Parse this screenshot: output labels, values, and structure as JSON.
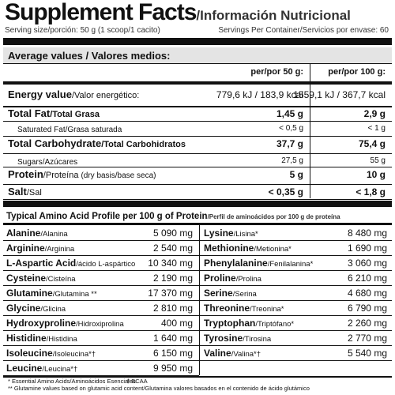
{
  "header": {
    "title": "Supplement Facts",
    "subtitle": "/Información Nutricional",
    "serving": "Serving size/porción: 50 g (1 scoop/1 cacito)",
    "servings": "Servings Per Container/Servicios por envase: 60"
  },
  "nutrition": {
    "heading": "Average values / Valores medios:",
    "columns": [
      "per/por 50 g:",
      "per/por 100 g:"
    ],
    "rows": [
      {
        "en": "Energy value",
        "es": "/Valor energético:",
        "values": [
          "779,6 kJ / 183,9 kcal",
          "1559,1 kJ / 367,7 kcal"
        ]
      },
      {
        "en": "Total Fat",
        "es": "/Total Grasa",
        "values": [
          "1,45 g",
          "2,9 g"
        ]
      },
      {
        "en": "Saturated Fat",
        "es": "/Grasa saturada",
        "values": [
          "< 0,5 g",
          "< 1 g"
        ]
      },
      {
        "en": "Total Carbohydrate",
        "es": "/Total Carbohidratos",
        "values": [
          "37,7 g",
          "75,4 g"
        ]
      },
      {
        "en": "Sugars",
        "es": "/Azúcares",
        "values": [
          "27,5 g",
          "55 g"
        ]
      },
      {
        "en": "Protein",
        "es": "/Proteína",
        "note": "(dry basis/base seca)",
        "values": [
          "5 g",
          "10 g"
        ]
      },
      {
        "en": "Salt",
        "es": "/Sal",
        "values": [
          "< 0,35 g",
          "< 1,8 g"
        ]
      }
    ]
  },
  "amino": {
    "title": "Typical Amino Acid Profile per 100 g of Protein",
    "subtitle": "/Perfil de aminoácidos por 100 g de proteína",
    "left": [
      {
        "en": "Alanine",
        "es": "/Alanina",
        "value": "5 090 mg"
      },
      {
        "en": "Arginine",
        "es": "/Arginina",
        "value": "2 540 mg"
      },
      {
        "en": "L-Aspartic Acid",
        "es": "/ácido L-aspártico",
        "value": "10 340 mg"
      },
      {
        "en": "Cysteine",
        "es": "/Cisteína",
        "value": "2 190 mg"
      },
      {
        "en": "Glutamine",
        "es": "/Glutamina **",
        "value": "17 370 mg"
      },
      {
        "en": "Glycine",
        "es": "/Glicina",
        "value": "2 810 mg"
      },
      {
        "en": "Hydroxyproline",
        "es": "/Hidroxiprolina",
        "value": "400 mg"
      },
      {
        "en": "Histidine",
        "es": "/Histidina",
        "value": "1 640 mg"
      },
      {
        "en": "Isoleucine",
        "es": "/Isoleucina*†",
        "value": "6 150 mg"
      },
      {
        "en": "Leucine",
        "es": "/Leucina*†",
        "value": "9 950 mg"
      }
    ],
    "right": [
      {
        "en": "Lysine",
        "es": "/Lisina*",
        "value": "8 480 mg"
      },
      {
        "en": "Methionine",
        "es": "/Metionina*",
        "value": "1 690 mg"
      },
      {
        "en": "Phenylalanine",
        "es": "/Fenilalanina*",
        "value": "3 060 mg"
      },
      {
        "en": "Proline",
        "es": "/Prolina",
        "value": "6 210 mg"
      },
      {
        "en": "Serine",
        "es": "/Serina",
        "value": "4 680 mg"
      },
      {
        "en": "Threonine",
        "es": "/Treonina*",
        "value": "6 790 mg"
      },
      {
        "en": "Tryptophan",
        "es": "/Triptófano*",
        "value": "2 260 mg"
      },
      {
        "en": "Tyrosine",
        "es": "/Tirosina",
        "value": "2 770 mg"
      },
      {
        "en": "Valine",
        "es": "/Valina*†",
        "value": "5 540 mg"
      }
    ]
  },
  "footnotes": [
    "* Essential Amino Acids/Aminoácidos Esenciales",
    "† BCAA",
    "** Glutamine values based on glutamic acid content/Glutamina valores basados en el contenido de ácido glutámico"
  ]
}
